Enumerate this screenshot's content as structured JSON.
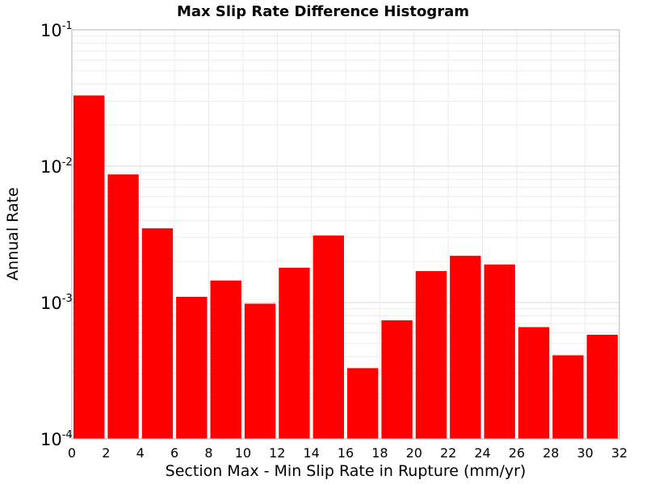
{
  "chart_data": {
    "type": "bar",
    "title": "Max Slip Rate Difference Histogram",
    "xlabel": "Section Max - Min Slip Rate in Rupture (mm/yr)",
    "ylabel": "Annual Rate",
    "y_scale": "log",
    "xlim": [
      0,
      32
    ],
    "ylim": [
      0.0001,
      0.1
    ],
    "x_ticks": [
      "0",
      "2",
      "4",
      "6",
      "8",
      "10",
      "12",
      "14",
      "16",
      "18",
      "20",
      "22",
      "24",
      "26",
      "28",
      "30",
      "32"
    ],
    "y_ticks": [
      {
        "base": "10",
        "exp": "-4",
        "value": 0.0001
      },
      {
        "base": "10",
        "exp": "-3",
        "value": 0.001
      },
      {
        "base": "10",
        "exp": "-2",
        "value": 0.01
      },
      {
        "base": "10",
        "exp": "-1",
        "value": 0.1
      }
    ],
    "bins": [
      {
        "x0": 0,
        "x1": 2,
        "value": 0.033
      },
      {
        "x0": 2,
        "x1": 4,
        "value": 0.0087
      },
      {
        "x0": 4,
        "x1": 6,
        "value": 0.0035
      },
      {
        "x0": 6,
        "x1": 8,
        "value": 0.0011
      },
      {
        "x0": 8,
        "x1": 10,
        "value": 0.00145
      },
      {
        "x0": 10,
        "x1": 12,
        "value": 0.00098
      },
      {
        "x0": 12,
        "x1": 14,
        "value": 0.0018
      },
      {
        "x0": 14,
        "x1": 16,
        "value": 0.0031
      },
      {
        "x0": 16,
        "x1": 18,
        "value": 0.00033
      },
      {
        "x0": 18,
        "x1": 20,
        "value": 0.00074
      },
      {
        "x0": 20,
        "x1": 22,
        "value": 0.0017
      },
      {
        "x0": 22,
        "x1": 24,
        "value": 0.0022
      },
      {
        "x0": 24,
        "x1": 26,
        "value": 0.0019
      },
      {
        "x0": 26,
        "x1": 28,
        "value": 0.00066
      },
      {
        "x0": 28,
        "x1": 30,
        "value": 0.00041
      },
      {
        "x0": 30,
        "x1": 32,
        "value": 0.00058
      }
    ],
    "bar_color": "#ff0000",
    "grid": true,
    "legend": "none"
  }
}
